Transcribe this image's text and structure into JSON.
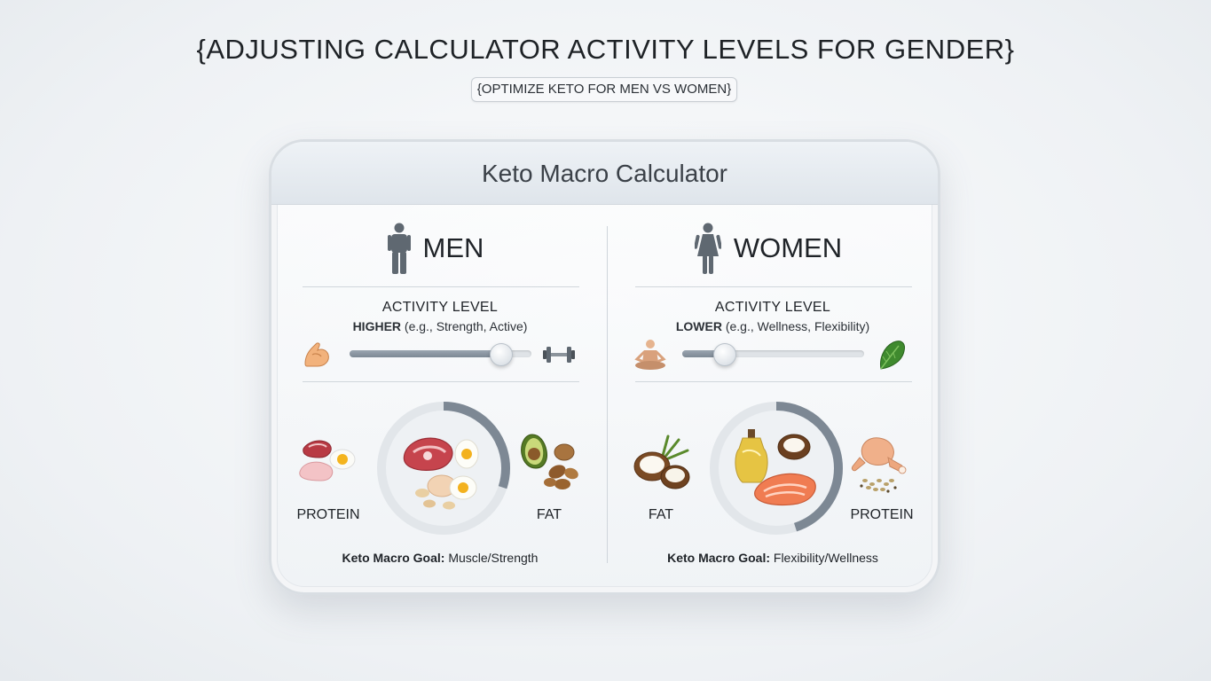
{
  "header": {
    "title": "{ADJUSTING CALCULATOR ACTIVITY LEVELS FOR GENDER}",
    "subtitle": "{OPTIMIZE KETO FOR MEN VS WOMEN}"
  },
  "card": {
    "title": "Keto Macro Calculator"
  },
  "men": {
    "label": "MEN",
    "icon": "male-person-icon",
    "activity_title": "ACTIVITY LEVEL",
    "activity_level": "HIGHER",
    "activity_examples": "(e.g., Strength, Active)",
    "slider_value_fraction": 0.83,
    "slider_left_icon": "flexed-bicep-icon",
    "slider_right_icon": "dumbbell-icon",
    "macro_left_label": "PROTEIN",
    "macro_right_label": "FAT",
    "ring_fraction": 0.3,
    "goal_label": "Keto Macro Goal:",
    "goal_value": "Muscle/Strength"
  },
  "women": {
    "label": "WOMEN",
    "icon": "female-person-icon",
    "activity_title": "ACTIVITY LEVEL",
    "activity_level": "LOWER",
    "activity_examples": "(e.g., Wellness, Flexibility)",
    "slider_value_fraction": 0.23,
    "slider_left_icon": "meditation-icon",
    "slider_right_icon": "leafy-greens-icon",
    "macro_left_label": "FAT",
    "macro_right_label": "PROTEIN",
    "ring_fraction": 0.45,
    "goal_label": "Keto Macro Goal:",
    "goal_value": "Flexibility/Wellness"
  },
  "colors": {
    "ring_track": "#e3e7eb",
    "ring_fill": "#7d8894",
    "slider_fill": "#8a95a1"
  }
}
